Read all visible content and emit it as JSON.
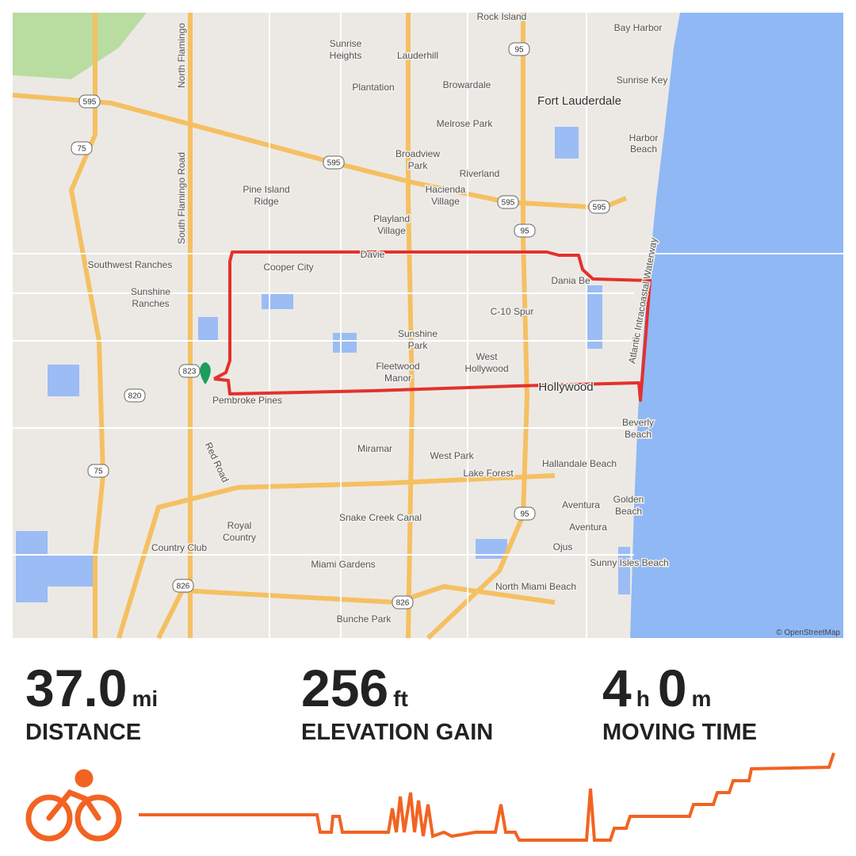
{
  "map": {
    "labels": [
      "Rock Island",
      "Bay Harbor",
      "Sunrise",
      "Heights",
      "Lauderhill",
      "Plantation",
      "Browardale",
      "Sunrise Key",
      "Fort Lauderdale",
      "North Flamingo",
      "South Flamingo Road",
      "Melrose Park",
      "Harbor",
      "Beach",
      "Broadview",
      "Park",
      "Riverland",
      "Pine Island",
      "Ridge",
      "Hacienda",
      "Village",
      "Playland",
      "Village",
      "Southwest Ranches",
      "Cooper City",
      "Davie",
      "Dania Be",
      "Sunshine",
      "Ranches",
      "C-10 Spur",
      "Atlantic Intracoastal Waterway",
      "Sunshine",
      "Park",
      "West",
      "Hollywood",
      "Fleetwood",
      "Manor",
      "Hollywood",
      "Pembroke Pines",
      "Beverly",
      "Beach",
      "Miramar",
      "West Park",
      "Red Road",
      "Hallandale Beach",
      "Lake Forest",
      "Snake Creek Canal",
      "Aventura",
      "Golden",
      "Beach",
      "Aventura",
      "Royal",
      "Country",
      "Country Club",
      "Ojus",
      "Sunny Isles Beach",
      "Miami Gardens",
      "North Miami Beach",
      "Bunche Park"
    ],
    "shields": [
      "595",
      "75",
      "595",
      "95",
      "595",
      "595",
      "95",
      "823",
      "820",
      "75",
      "95",
      "826",
      "826"
    ],
    "attribution": "© OpenStreetMap"
  },
  "stats": [
    {
      "value": "37.0",
      "unit": "mi",
      "label": "DISTANCE"
    },
    {
      "value": "256",
      "unit": "ft",
      "label": "ELEVATION GAIN"
    },
    {
      "hours": "4",
      "hours_unit": "h",
      "minutes": "0",
      "minutes_unit": "m",
      "label": "MOVING TIME"
    }
  ]
}
